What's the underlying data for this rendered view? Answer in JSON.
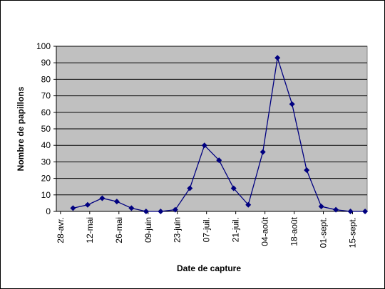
{
  "chart_data": {
    "type": "line",
    "x_label": "Date de capture",
    "y_label": "Nombre de papillons",
    "x": [
      124,
      131,
      138,
      145,
      152,
      159,
      166,
      173,
      180,
      187,
      194,
      201,
      208,
      215,
      222,
      229,
      236,
      243,
      250,
      257,
      264
    ],
    "series": [
      {
        "name": null,
        "color": "#000080",
        "values": [
          2,
          4,
          8,
          6,
          2,
          0,
          0,
          1,
          14,
          40,
          31,
          14,
          4,
          36,
          93,
          65,
          25,
          3,
          1,
          0,
          0
        ]
      }
    ],
    "xlim": [
      116,
      265
    ],
    "xticks": [
      {
        "value": 118,
        "label": "28-avr."
      },
      {
        "value": 132,
        "label": "12-mai"
      },
      {
        "value": 146,
        "label": "26-mai"
      },
      {
        "value": 160,
        "label": "09-juin"
      },
      {
        "value": 174,
        "label": "23-juin"
      },
      {
        "value": 188,
        "label": "07-juil."
      },
      {
        "value": 202,
        "label": "21-juil."
      },
      {
        "value": 216,
        "label": "04-août"
      },
      {
        "value": 230,
        "label": "18-août"
      },
      {
        "value": 244,
        "label": "01-sept."
      },
      {
        "value": 258,
        "label": "15-sept."
      }
    ],
    "ylim": [
      0,
      100
    ],
    "yticks": [
      0,
      10,
      20,
      30,
      40,
      50,
      60,
      70,
      80,
      90,
      100
    ],
    "grid": true,
    "plot_background": "#c0c0c0"
  }
}
